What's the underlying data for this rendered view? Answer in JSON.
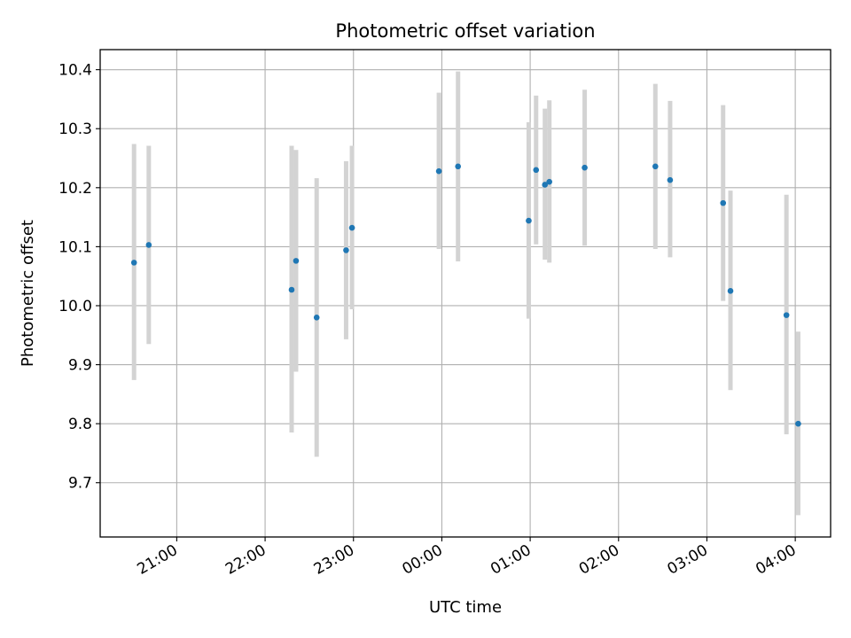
{
  "chart_data": {
    "type": "scatter",
    "title": "Photometric offset variation",
    "xlabel": "UTC time",
    "ylabel": "Photometric offset",
    "x_format": "HH:MM",
    "xlim": [
      "2024-01-01T20:08:00",
      "2024-01-02T04:24:00"
    ],
    "ylim": [
      9.608,
      10.434
    ],
    "x_ticks": [
      "2024-01-01T21:00:00",
      "2024-01-01T22:00:00",
      "2024-01-01T23:00:00",
      "2024-01-02T00:00:00",
      "2024-01-02T01:00:00",
      "2024-01-02T02:00:00",
      "2024-01-02T03:00:00",
      "2024-01-02T04:00:00"
    ],
    "x_tick_labels": [
      "21:00",
      "22:00",
      "23:00",
      "00:00",
      "01:00",
      "02:00",
      "03:00",
      "04:00"
    ],
    "y_ticks": [
      9.7,
      9.8,
      9.9,
      10.0,
      10.1,
      10.2,
      10.3,
      10.4
    ],
    "y_tick_labels": [
      "9.7",
      "9.8",
      "9.9",
      "10.0",
      "10.1",
      "10.2",
      "10.3",
      "10.4"
    ],
    "grid": true,
    "marker_color": "#1f77b4",
    "errorbar_color": "#d3d3d3",
    "points": [
      {
        "t": "2024-01-01T20:31:00",
        "y": 10.073,
        "lo": 9.874,
        "hi": 10.274
      },
      {
        "t": "2024-01-01T20:41:00",
        "y": 10.103,
        "lo": 9.935,
        "hi": 10.271
      },
      {
        "t": "2024-01-01T22:18:00",
        "y": 10.027,
        "lo": 9.785,
        "hi": 10.271
      },
      {
        "t": "2024-01-01T22:21:00",
        "y": 10.076,
        "lo": 9.888,
        "hi": 10.264
      },
      {
        "t": "2024-01-01T22:35:00",
        "y": 9.98,
        "lo": 9.744,
        "hi": 10.216
      },
      {
        "t": "2024-01-01T22:55:00",
        "y": 10.094,
        "lo": 9.943,
        "hi": 10.245
      },
      {
        "t": "2024-01-01T22:59:00",
        "y": 10.132,
        "lo": 9.994,
        "hi": 10.271
      },
      {
        "t": "2024-01-01T23:58:00",
        "y": 10.228,
        "lo": 10.096,
        "hi": 10.361
      },
      {
        "t": "2024-01-02T00:11:00",
        "y": 10.236,
        "lo": 10.075,
        "hi": 10.397
      },
      {
        "t": "2024-01-02T00:59:00",
        "y": 10.144,
        "lo": 9.978,
        "hi": 10.311
      },
      {
        "t": "2024-01-02T01:04:00",
        "y": 10.23,
        "lo": 10.104,
        "hi": 10.356
      },
      {
        "t": "2024-01-02T01:10:00",
        "y": 10.205,
        "lo": 10.078,
        "hi": 10.334
      },
      {
        "t": "2024-01-02T01:13:00",
        "y": 10.21,
        "lo": 10.073,
        "hi": 10.348
      },
      {
        "t": "2024-01-02T01:37:00",
        "y": 10.234,
        "lo": 10.102,
        "hi": 10.366
      },
      {
        "t": "2024-01-02T02:25:00",
        "y": 10.236,
        "lo": 10.096,
        "hi": 10.376
      },
      {
        "t": "2024-01-02T02:35:00",
        "y": 10.213,
        "lo": 10.082,
        "hi": 10.347
      },
      {
        "t": "2024-01-02T03:11:00",
        "y": 10.174,
        "lo": 10.008,
        "hi": 10.34
      },
      {
        "t": "2024-01-02T03:16:00",
        "y": 10.025,
        "lo": 9.857,
        "hi": 10.195
      },
      {
        "t": "2024-01-02T03:54:00",
        "y": 9.984,
        "lo": 9.782,
        "hi": 10.188
      },
      {
        "t": "2024-01-02T04:02:00",
        "y": 9.8,
        "lo": 9.645,
        "hi": 9.956
      }
    ]
  }
}
